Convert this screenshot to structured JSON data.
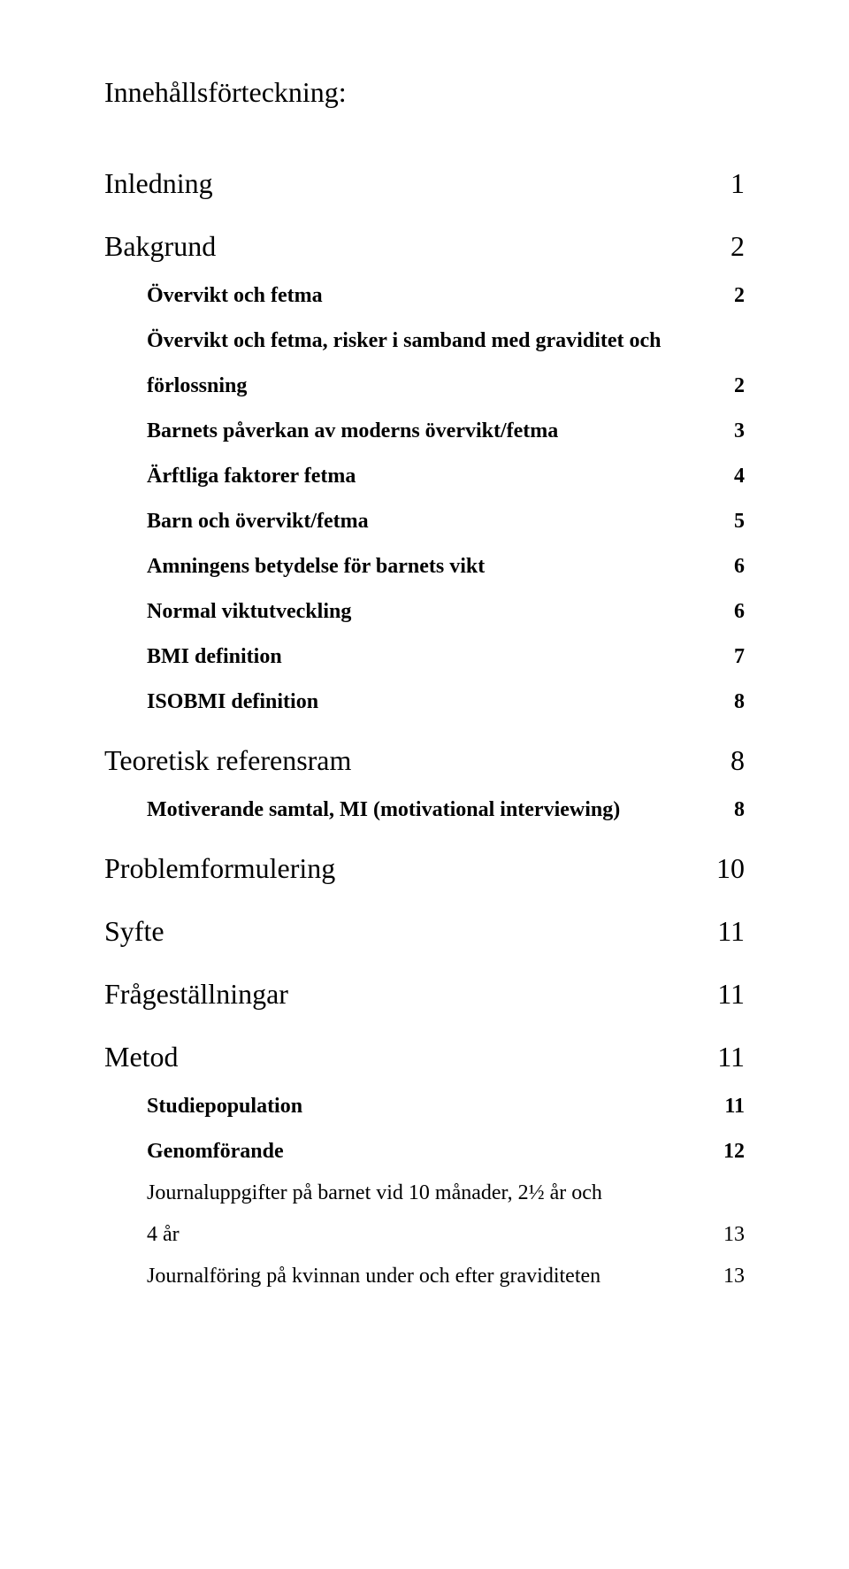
{
  "title": "Innehållsförteckning:",
  "entries": [
    {
      "level": 1,
      "label": "Inledning",
      "page": "1"
    },
    {
      "level": 1,
      "label": "Bakgrund",
      "page": "2"
    },
    {
      "level": 2,
      "label": "Övervikt och fetma",
      "page": "2"
    },
    {
      "level": 2,
      "label": "Övervikt och fetma, risker i samband med graviditet och",
      "page": ""
    },
    {
      "level": 2,
      "label": "förlossning",
      "page": "2"
    },
    {
      "level": 2,
      "label": "Barnets påverkan av moderns övervikt/fetma",
      "page": "3"
    },
    {
      "level": 2,
      "label": "Ärftliga faktorer fetma",
      "page": "4"
    },
    {
      "level": 2,
      "label": "Barn och övervikt/fetma",
      "page": "5"
    },
    {
      "level": 2,
      "label": "Amningens betydelse för barnets vikt",
      "page": "6"
    },
    {
      "level": 2,
      "label": "Normal viktutveckling",
      "page": "6"
    },
    {
      "level": 2,
      "label": "BMI definition",
      "page": "7"
    },
    {
      "level": 2,
      "label": "ISOBMI definition",
      "page": "8"
    },
    {
      "level": 1,
      "label": "Teoretisk referensram",
      "page": "8"
    },
    {
      "level": 2,
      "label": "Motiverande samtal, MI (motivational interviewing)",
      "page": "8"
    },
    {
      "level": 1,
      "label": "Problemformulering",
      "page": "10"
    },
    {
      "level": 1,
      "label": "Syfte",
      "page": "11"
    },
    {
      "level": 1,
      "label": "Frågeställningar",
      "page": "11"
    },
    {
      "level": 1,
      "label": "Metod",
      "page": "11"
    },
    {
      "level": 2,
      "label": "Studiepopulation",
      "page": "11"
    },
    {
      "level": 2,
      "label": "Genomförande",
      "page": "12"
    },
    {
      "level": 3,
      "label": "Journaluppgifter på barnet vid 10 månader, 2½ år och",
      "page": ""
    },
    {
      "level": 3,
      "label": "4 år",
      "page": "13"
    },
    {
      "level": 3,
      "label": "Journalföring på kvinnan under och efter graviditeten",
      "page": "13"
    }
  ]
}
